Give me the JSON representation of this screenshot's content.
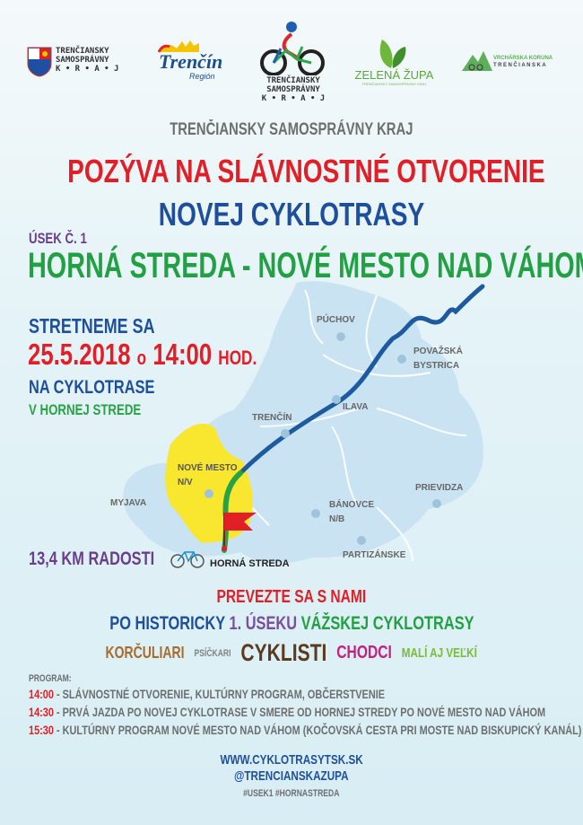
{
  "logos": {
    "tsk": {
      "line1": "TRENČIANSKY",
      "line2": "SAMOSPRÁVNY",
      "line3": "K • R • A • J"
    },
    "trencin": {
      "name": "Trenčín",
      "sub": "Región"
    },
    "cyklo": {
      "line1": "TRENČIANSKY",
      "line2": "SAMOSPRÁVNY",
      "line3": "K • R • A • J"
    },
    "zelena": {
      "name": "ZELENÁ ŽUPA",
      "sub": "TRENČIANSKY SAMOSPRÁVNY KRAJ"
    },
    "koruna": {
      "line1": "VRCHÁRSKA KORUNA",
      "line2": "TRENČIANSKA"
    }
  },
  "header": {
    "org": "TRENČIANSKY SAMOSPRÁVNY KRAJ",
    "invite": "POZÝVA NA SLÁVNOSTNÉ OTVORENIE",
    "subject": "NOVEJ CYKLOTRASY",
    "section": "ÚSEK Č. 1",
    "route": "HORNÁ STREDA - NOVÉ MESTO NAD VÁHOM"
  },
  "meet": {
    "line1": "STRETNEME SA",
    "date": "25.5.2018",
    "o": "o",
    "time": "14:00",
    "hod": "HOD.",
    "line3": "NA CYKLOTRASE",
    "line4": "V HORNEJ STREDE"
  },
  "map": {
    "cities": [
      "PÚCHOV",
      "POVAŽSKÁ",
      "BYSTRICA",
      "ILAVA",
      "TRENČÍN",
      "NOVÉ MESTO",
      "N/V",
      "MYJAVA",
      "BÁNOVCE",
      "N/B",
      "PRIEVIDZA",
      "PARTIZÁNSKE",
      "HORNÁ STREDA"
    ],
    "colors": {
      "region": "#c9e3f3",
      "highlight": "#f9e62e",
      "route": "#1e5aa0",
      "new_route": "#27a245",
      "flag": "#e21f26"
    }
  },
  "distance": "13,4 KM RADOSTI",
  "join": {
    "line1": "PREVEZTE SA S NAMI",
    "po": "PO HISTORICKY",
    "usek": "1. ÚSEKU",
    "vah": "VÁŽSKEJ CYKLOTRASY"
  },
  "groups": [
    {
      "label": "KORČULIARI",
      "color": "#a86b2d"
    },
    {
      "label": "PSÍČKARI",
      "color": "#808285"
    },
    {
      "label": "CYKLISTI",
      "color": "#5b3a1e"
    },
    {
      "label": "CHODCI",
      "color": "#c2217f"
    },
    {
      "label": "MALÍ AJ VEĽKÍ",
      "color": "#7cb940"
    }
  ],
  "program": {
    "title": "PROGRAM:",
    "items": [
      {
        "time": "14:00",
        "text": " - SLÁVNOSTNÉ OTVORENIE, KULTÚRNY PROGRAM, OBČERSTVENIE"
      },
      {
        "time": "14:30",
        "text": " - PRVÁ JAZDA PO NOVEJ CYKLOTRASE V SMERE OD HORNEJ STREDY PO NOVÉ MESTO NAD VÁHOM"
      },
      {
        "time": "15:30",
        "text": " - KULTÚRNY PROGRAM NOVÉ MESTO NAD VÁHOM (KOČOVSKÁ CESTA PRI MOSTE NAD BISKUPICKÝ KANÁL)"
      }
    ]
  },
  "footer": {
    "web": "WWW.CYKLOTRASYTSK.SK",
    "social": "@TRENCIANSKAZUPA",
    "tags": "#USEK1 #HORNASTREDA"
  }
}
